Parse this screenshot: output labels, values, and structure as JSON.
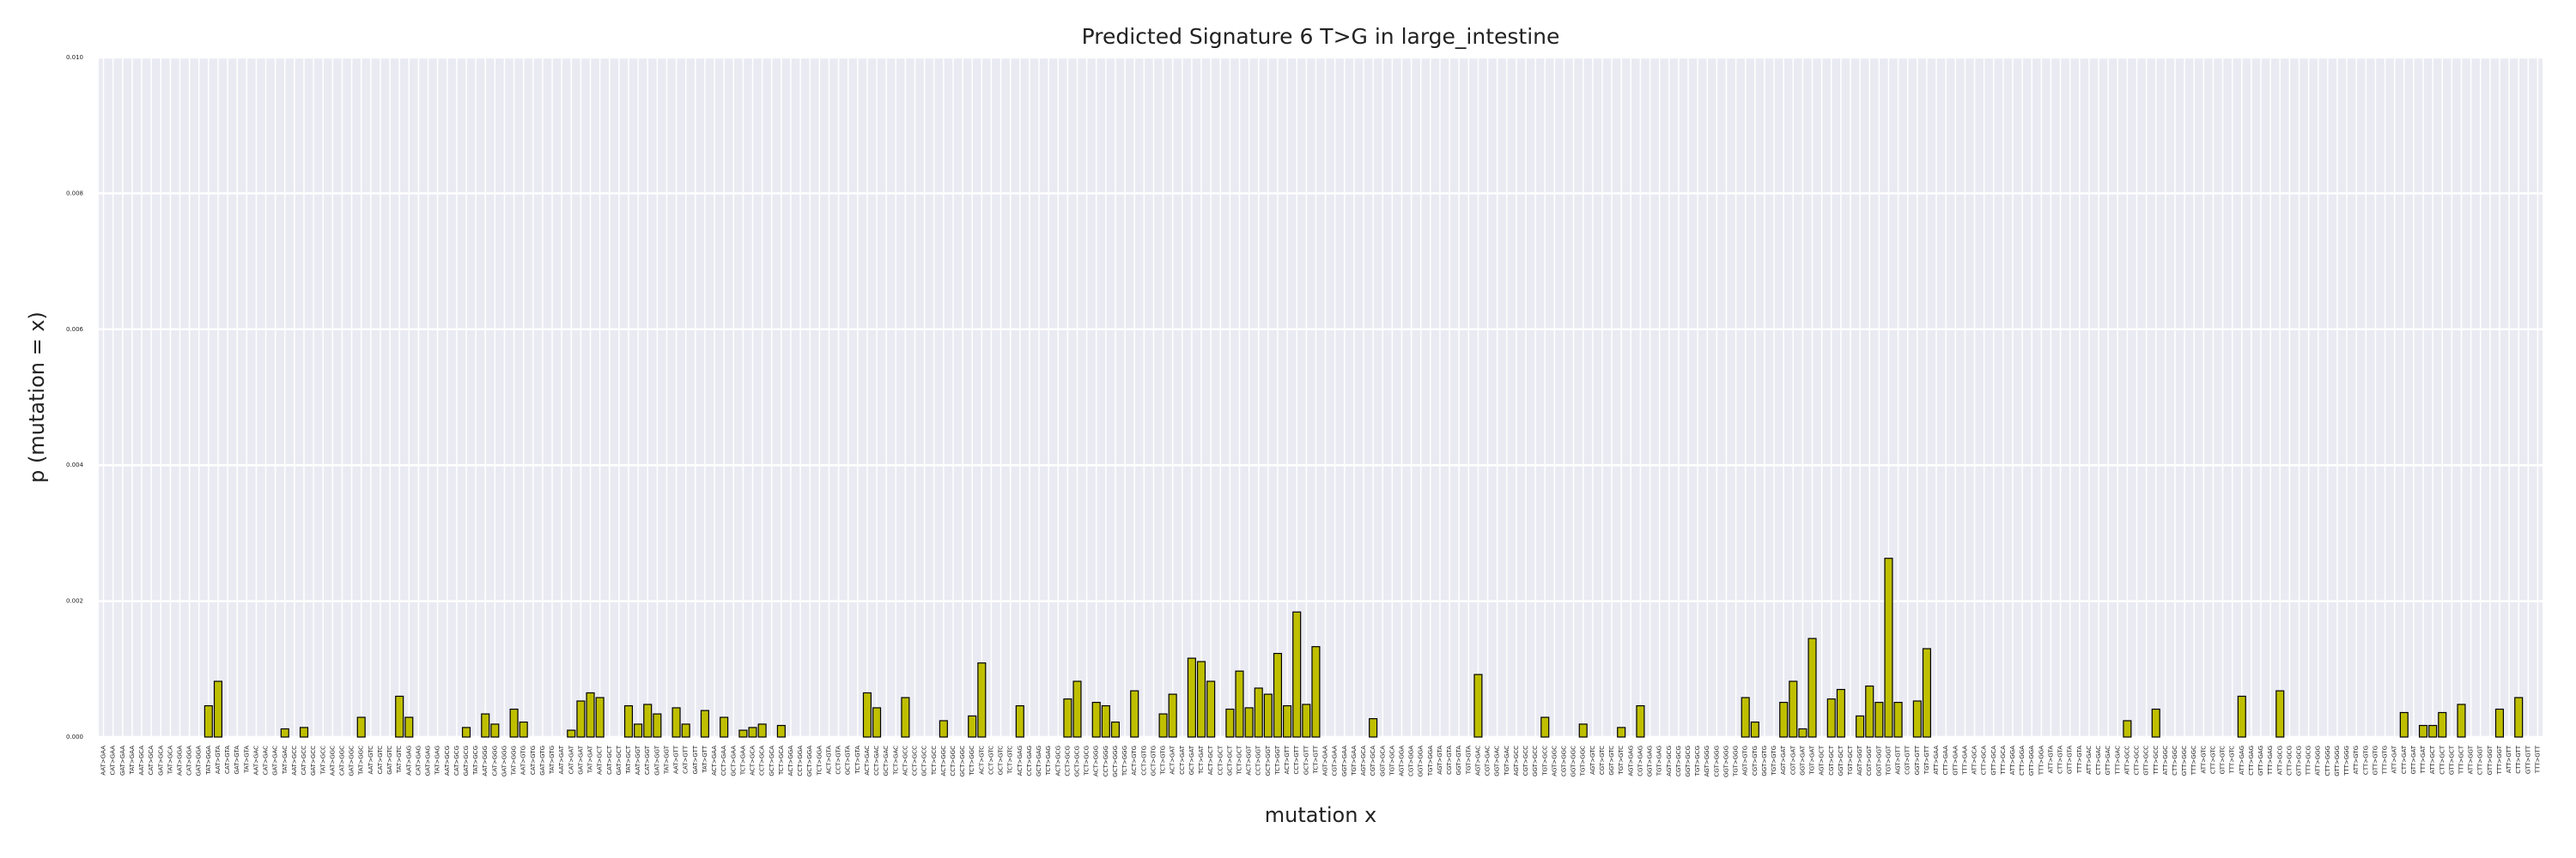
{
  "chart_data": {
    "type": "bar",
    "title": "Predicted Signature 6 T>G in large_intestine",
    "xlabel": "mutation x",
    "ylabel": "p (mutation = x)",
    "color": "#bfbf00",
    "edgecolor": "#000000",
    "grid": true,
    "ylim": [
      0,
      0.01
    ],
    "yticks": [
      {
        "value": 0,
        "label": "0.000"
      },
      {
        "value": 0.002,
        "label": "0.002"
      },
      {
        "value": 0.004,
        "label": "0.004"
      },
      {
        "value": 0.006,
        "label": "0.006"
      },
      {
        "value": 0.008,
        "label": "0.008"
      },
      {
        "value": 0.01,
        "label": "0.010"
      }
    ],
    "categories": [
      "AAT>GAA",
      "CAT>GAA",
      "GAT>GAA",
      "TAT>GAA",
      "AAT>GCA",
      "CAT>GCA",
      "GAT>GCA",
      "TAT>GCA",
      "AAT>GGA",
      "CAT>GGA",
      "GAT>GGA",
      "TAT>GGA",
      "AAT>GTA",
      "CAT>GTA",
      "GAT>GTA",
      "TAT>GTA",
      "AAT>GAC",
      "CAT>GAC",
      "GAT>GAC",
      "TAT>GAC",
      "AAT>GCC",
      "CAT>GCC",
      "GAT>GCC",
      "TAT>GCC",
      "AAT>GGC",
      "CAT>GGC",
      "GAT>GGC",
      "TAT>GGC",
      "AAT>GTC",
      "CAT>GTC",
      "GAT>GTC",
      "TAT>GTC",
      "AAT>GAG",
      "CAT>GAG",
      "GAT>GAG",
      "TAT>GAG",
      "AAT>GCG",
      "CAT>GCG",
      "GAT>GCG",
      "TAT>GCG",
      "AAT>GGG",
      "CAT>GGG",
      "GAT>GGG",
      "TAT>GGG",
      "AAT>GTG",
      "CAT>GTG",
      "GAT>GTG",
      "TAT>GTG",
      "AAT>GAT",
      "CAT>GAT",
      "GAT>GAT",
      "TAT>GAT",
      "AAT>GCT",
      "CAT>GCT",
      "GAT>GCT",
      "TAT>GCT",
      "AAT>GGT",
      "CAT>GGT",
      "GAT>GGT",
      "TAT>GGT",
      "AAT>GTT",
      "CAT>GTT",
      "GAT>GTT",
      "TAT>GTT",
      "ACT>GAA",
      "CCT>GAA",
      "GCT>GAA",
      "TCT>GAA",
      "ACT>GCA",
      "CCT>GCA",
      "GCT>GCA",
      "TCT>GCA",
      "ACT>GGA",
      "CCT>GGA",
      "GCT>GGA",
      "TCT>GGA",
      "ACT>GTA",
      "CCT>GTA",
      "GCT>GTA",
      "TCT>GTA",
      "ACT>GAC",
      "CCT>GAC",
      "GCT>GAC",
      "TCT>GAC",
      "ACT>GCC",
      "CCT>GCC",
      "GCT>GCC",
      "TCT>GCC",
      "ACT>GGC",
      "CCT>GGC",
      "GCT>GGC",
      "TCT>GGC",
      "ACT>GTC",
      "CCT>GTC",
      "GCT>GTC",
      "TCT>GTC",
      "ACT>GAG",
      "CCT>GAG",
      "GCT>GAG",
      "TCT>GAG",
      "ACT>GCG",
      "CCT>GCG",
      "GCT>GCG",
      "TCT>GCG",
      "ACT>GGG",
      "CCT>GGG",
      "GCT>GGG",
      "TCT>GGG",
      "ACT>GTG",
      "CCT>GTG",
      "GCT>GTG",
      "TCT>GTG",
      "ACT>GAT",
      "CCT>GAT",
      "GCT>GAT",
      "TCT>GAT",
      "ACT>GCT",
      "CCT>GCT",
      "GCT>GCT",
      "TCT>GCT",
      "ACT>GGT",
      "CCT>GGT",
      "GCT>GGT",
      "TCT>GGT",
      "ACT>GTT",
      "CCT>GTT",
      "GCT>GTT",
      "TCT>GTT",
      "AGT>GAA",
      "CGT>GAA",
      "GGT>GAA",
      "TGT>GAA",
      "AGT>GCA",
      "CGT>GCA",
      "GGT>GCA",
      "TGT>GCA",
      "AGT>GGA",
      "CGT>GGA",
      "GGT>GGA",
      "TGT>GGA",
      "AGT>GTA",
      "CGT>GTA",
      "GGT>GTA",
      "TGT>GTA",
      "AGT>GAC",
      "CGT>GAC",
      "GGT>GAC",
      "TGT>GAC",
      "AGT>GCC",
      "CGT>GCC",
      "GGT>GCC",
      "TGT>GCC",
      "AGT>GGC",
      "CGT>GGC",
      "GGT>GGC",
      "TGT>GGC",
      "AGT>GTC",
      "CGT>GTC",
      "GGT>GTC",
      "TGT>GTC",
      "AGT>GAG",
      "CGT>GAG",
      "GGT>GAG",
      "TGT>GAG",
      "AGT>GCG",
      "CGT>GCG",
      "GGT>GCG",
      "TGT>GCG",
      "AGT>GGG",
      "CGT>GGG",
      "GGT>GGG",
      "TGT>GGG",
      "AGT>GTG",
      "CGT>GTG",
      "GGT>GTG",
      "TGT>GTG",
      "AGT>GAT",
      "CGT>GAT",
      "GGT>GAT",
      "TGT>GAT",
      "AGT>GCT",
      "CGT>GCT",
      "GGT>GCT",
      "TGT>GCT",
      "AGT>GGT",
      "CGT>GGT",
      "GGT>GGT",
      "TGT>GGT",
      "AGT>GTT",
      "CGT>GTT",
      "GGT>GTT",
      "TGT>GTT",
      "ATT>GAA",
      "CTT>GAA",
      "GTT>GAA",
      "TTT>GAA",
      "ATT>GCA",
      "CTT>GCA",
      "GTT>GCA",
      "TTT>GCA",
      "ATT>GGA",
      "CTT>GGA",
      "GTT>GGA",
      "TTT>GGA",
      "ATT>GTA",
      "CTT>GTA",
      "GTT>GTA",
      "TTT>GTA",
      "ATT>GAC",
      "CTT>GAC",
      "GTT>GAC",
      "TTT>GAC",
      "ATT>GCC",
      "CTT>GCC",
      "GTT>GCC",
      "TTT>GCC",
      "ATT>GGC",
      "CTT>GGC",
      "GTT>GGC",
      "TTT>GGC",
      "ATT>GTC",
      "CTT>GTC",
      "GTT>GTC",
      "TTT>GTC",
      "ATT>GAG",
      "CTT>GAG",
      "GTT>GAG",
      "TTT>GAG",
      "ATT>GCG",
      "CTT>GCG",
      "GTT>GCG",
      "TTT>GCG",
      "ATT>GGG",
      "CTT>GGG",
      "GTT>GGG",
      "TTT>GGG",
      "ATT>GTG",
      "CTT>GTG",
      "GTT>GTG",
      "TTT>GTG",
      "ATT>GAT",
      "CTT>GAT",
      "GTT>GAT",
      "TTT>GAT",
      "ATT>GCT",
      "CTT>GCT",
      "GTT>GCT",
      "TTT>GCT",
      "ATT>GGT",
      "CTT>GGT",
      "GTT>GGT",
      "TTT>GGT",
      "ATT>GTT",
      "CTT>GTT",
      "GTT>GTT",
      "TTT>GTT"
    ],
    "values": [
      0,
      0,
      0,
      0,
      0,
      0,
      0,
      0,
      0,
      0,
      0,
      0.00046,
      0.00082,
      0,
      0,
      0,
      0,
      0,
      0,
      0.00012,
      0,
      0.00014,
      0,
      0,
      0,
      0,
      0,
      0.00029,
      0,
      0,
      0,
      0.0006,
      0.00029,
      0,
      0,
      0,
      0,
      0,
      0.00014,
      0,
      0.00034,
      0.00019,
      0,
      0.00041,
      0.00022,
      0,
      0,
      0,
      0,
      0.0001,
      0.00053,
      0.00065,
      0.00058,
      0,
      0,
      0.00046,
      0.00019,
      0.00048,
      0.00034,
      0,
      0.00043,
      0.00019,
      0,
      0.00039,
      0,
      0.00029,
      0,
      0.0001,
      0.00014,
      0.00019,
      0,
      0.00017,
      0,
      0,
      0,
      0,
      0,
      0,
      0,
      0,
      0.00065,
      0.00043,
      0,
      0,
      0.00058,
      0,
      0,
      0,
      0.00024,
      0,
      0,
      0.00031,
      0.00109,
      0,
      0,
      0,
      0.00046,
      0,
      0,
      0,
      0,
      0.00056,
      0.00082,
      0,
      0.00051,
      0.00046,
      0.00022,
      0,
      0.00068,
      0,
      0,
      0.00034,
      0.00063,
      0,
      0.00116,
      0.00111,
      0.00082,
      0,
      0.00041,
      0.00097,
      0.00043,
      0.00072,
      0.00063,
      0.00123,
      0.00046,
      0.00184,
      0.00048,
      0.00133,
      0,
      0,
      0,
      0,
      0,
      0.00027,
      0,
      0,
      0,
      0,
      0,
      0,
      0,
      0,
      0,
      0,
      0.00092,
      0,
      0,
      0,
      0,
      0,
      0,
      0.00029,
      0,
      0,
      0,
      0.00019,
      0,
      0,
      0,
      0.00014,
      0,
      0.00046,
      0,
      0,
      0,
      0,
      0,
      0,
      0,
      0,
      0,
      0,
      0.00058,
      0.00022,
      0,
      0,
      0.00051,
      0.00082,
      0.00012,
      0.00145,
      0,
      0.00056,
      0.0007,
      0,
      0.00031,
      0.00075,
      0.00051,
      0.00263,
      0.00051,
      0,
      0.00053,
      0.0013,
      0,
      0,
      0,
      0,
      0,
      0,
      0,
      0,
      0,
      0,
      0,
      0,
      0,
      0,
      0,
      0,
      0,
      0,
      0,
      0,
      0.00024,
      0,
      0,
      0.00041,
      0,
      0,
      0,
      0,
      0,
      0,
      0,
      0,
      0.0006,
      0,
      0,
      0,
      0.00068,
      0,
      0,
      0,
      0,
      0,
      0,
      0,
      0,
      0,
      0,
      0,
      0,
      0.00036,
      0,
      0.00017,
      0.00017,
      0.00036,
      0,
      0.00048,
      0,
      0,
      0,
      0.00041,
      0,
      0.00058,
      0,
      0
    ]
  }
}
